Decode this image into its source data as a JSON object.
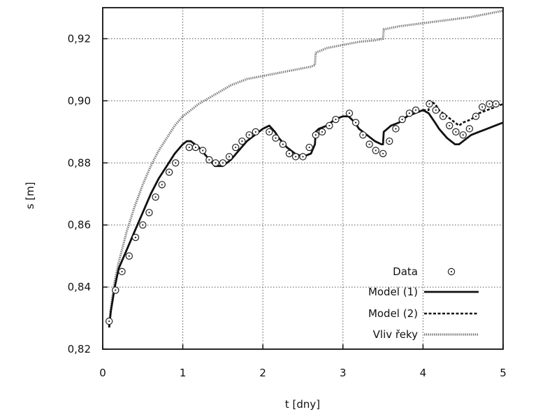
{
  "chart_data": {
    "type": "line",
    "xlabel": "t [dny]",
    "ylabel": "s [m]",
    "xlim": [
      0,
      5
    ],
    "ylim": [
      0.82,
      0.93
    ],
    "x_ticks": [
      0,
      1,
      2,
      3,
      4,
      5
    ],
    "x_tick_labels": [
      "0",
      "1",
      "2",
      "3",
      "4",
      "5"
    ],
    "y_ticks": [
      0.82,
      0.84,
      0.86,
      0.88,
      0.9,
      0.92
    ],
    "y_tick_labels": [
      "0,82",
      "0,84",
      "0,86",
      "0,88",
      "0,90",
      "0,92"
    ],
    "grid": true,
    "legend_position": "bottom-right",
    "series": [
      {
        "name": "Data",
        "style": "markers",
        "x": [
          0.08,
          0.16,
          0.24,
          0.33,
          0.41,
          0.5,
          0.58,
          0.66,
          0.74,
          0.83,
          0.91,
          1.08,
          1.16,
          1.25,
          1.33,
          1.41,
          1.5,
          1.58,
          1.66,
          1.74,
          1.83,
          1.91,
          2.08,
          2.16,
          2.25,
          2.33,
          2.41,
          2.5,
          2.58,
          2.66,
          2.74,
          2.83,
          2.91,
          3.08,
          3.16,
          3.25,
          3.33,
          3.41,
          3.5,
          3.58,
          3.66,
          3.74,
          3.83,
          3.91,
          4.08,
          4.16,
          4.25,
          4.33,
          4.41,
          4.5,
          4.58,
          4.66,
          4.74,
          4.83,
          4.91
        ],
        "y": [
          0.829,
          0.839,
          0.845,
          0.85,
          0.856,
          0.86,
          0.864,
          0.869,
          0.873,
          0.877,
          0.88,
          0.885,
          0.885,
          0.884,
          0.881,
          0.88,
          0.88,
          0.882,
          0.885,
          0.887,
          0.889,
          0.89,
          0.89,
          0.888,
          0.886,
          0.883,
          0.882,
          0.882,
          0.885,
          0.889,
          0.89,
          0.892,
          0.894,
          0.896,
          0.893,
          0.889,
          0.886,
          0.884,
          0.883,
          0.887,
          0.891,
          0.894,
          0.896,
          0.897,
          0.899,
          0.897,
          0.895,
          0.892,
          0.89,
          0.889,
          0.891,
          0.895,
          0.898,
          0.899,
          0.899
        ]
      },
      {
        "name": "Model (1)",
        "style": "solid",
        "x": [
          0.08,
          0.1,
          0.15,
          0.2,
          0.3,
          0.4,
          0.5,
          0.6,
          0.7,
          0.8,
          0.9,
          1.0,
          1.05,
          1.1,
          1.2,
          1.3,
          1.4,
          1.5,
          1.6,
          1.7,
          1.8,
          1.9,
          2.0,
          2.08,
          2.15,
          2.2,
          2.3,
          2.4,
          2.5,
          2.6,
          2.65,
          2.66,
          2.7,
          2.8,
          2.9,
          3.0,
          3.07,
          3.15,
          3.2,
          3.3,
          3.4,
          3.48,
          3.5,
          3.51,
          3.6,
          3.7,
          3.8,
          3.9,
          4.0,
          4.07,
          4.15,
          4.2,
          4.3,
          4.4,
          4.45,
          4.5,
          4.6,
          4.7,
          4.8,
          4.9,
          5.0
        ],
        "y": [
          0.827,
          0.832,
          0.84,
          0.846,
          0.852,
          0.858,
          0.864,
          0.87,
          0.875,
          0.879,
          0.883,
          0.886,
          0.887,
          0.887,
          0.885,
          0.882,
          0.879,
          0.879,
          0.881,
          0.884,
          0.887,
          0.889,
          0.891,
          0.892,
          0.89,
          0.888,
          0.885,
          0.883,
          0.882,
          0.883,
          0.886,
          0.89,
          0.891,
          0.892,
          0.894,
          0.895,
          0.895,
          0.893,
          0.891,
          0.889,
          0.887,
          0.886,
          0.886,
          0.89,
          0.892,
          0.893,
          0.895,
          0.896,
          0.897,
          0.896,
          0.893,
          0.891,
          0.888,
          0.886,
          0.886,
          0.887,
          0.889,
          0.89,
          0.891,
          0.892,
          0.893
        ]
      },
      {
        "name": "Model (2)",
        "style": "dashed",
        "x": [
          4.0,
          4.07,
          4.08,
          4.15,
          4.2,
          4.3,
          4.4,
          4.45,
          4.5,
          4.6,
          4.7,
          4.8,
          4.9,
          5.0
        ],
        "y": [
          0.897,
          0.897,
          0.9,
          0.899,
          0.897,
          0.895,
          0.893,
          0.892,
          0.893,
          0.894,
          0.896,
          0.897,
          0.898,
          0.899
        ]
      },
      {
        "name": "Vliv řeky",
        "style": "dotted",
        "x": [
          0.08,
          0.1,
          0.15,
          0.2,
          0.25,
          0.3,
          0.4,
          0.5,
          0.6,
          0.7,
          0.8,
          0.9,
          1.0,
          1.2,
          1.4,
          1.6,
          1.8,
          2.0,
          2.2,
          2.4,
          2.6,
          2.65,
          2.66,
          2.8,
          3.0,
          3.2,
          3.4,
          3.5,
          3.51,
          3.7,
          4.0,
          4.3,
          4.6,
          5.0
        ],
        "y": [
          0.827,
          0.833,
          0.842,
          0.848,
          0.853,
          0.858,
          0.866,
          0.873,
          0.879,
          0.884,
          0.888,
          0.892,
          0.895,
          0.899,
          0.902,
          0.905,
          0.907,
          0.908,
          0.909,
          0.91,
          0.911,
          0.9115,
          0.9155,
          0.917,
          0.918,
          0.919,
          0.9195,
          0.92,
          0.923,
          0.924,
          0.925,
          0.926,
          0.927,
          0.929
        ]
      }
    ]
  }
}
